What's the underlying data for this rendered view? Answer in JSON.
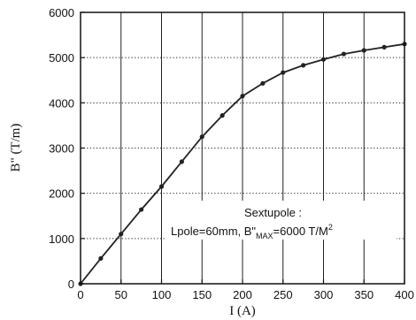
{
  "chart_data": {
    "type": "line",
    "xlabel": "I (A)",
    "ylabel": "B\" (T/m)",
    "xlim": [
      0,
      400
    ],
    "ylim": [
      0,
      6000
    ],
    "x_ticks": [
      "0",
      "50",
      "100",
      "150",
      "200",
      "250",
      "300",
      "350",
      "400"
    ],
    "y_ticks": [
      "0",
      "1000",
      "2000",
      "3000",
      "4000",
      "5000",
      "6000"
    ],
    "grid": {
      "vertical": "solid",
      "horizontal": "dotted"
    },
    "annotation": {
      "line1": "Sextupole :",
      "line2_prefix": "Lpole=60mm, B\"",
      "line2_sub": "MAX",
      "line2_mid": "=6000 T/M",
      "line2_sup": "2"
    },
    "series": [
      {
        "x": [
          0,
          25,
          50,
          75,
          100,
          125,
          150,
          175,
          200,
          225,
          250,
          275,
          300,
          325,
          350,
          375,
          400
        ],
        "y": [
          0,
          560,
          1100,
          1640,
          2150,
          2700,
          3250,
          3720,
          4150,
          4430,
          4670,
          4830,
          4960,
          5080,
          5160,
          5230,
          5300
        ]
      }
    ]
  }
}
